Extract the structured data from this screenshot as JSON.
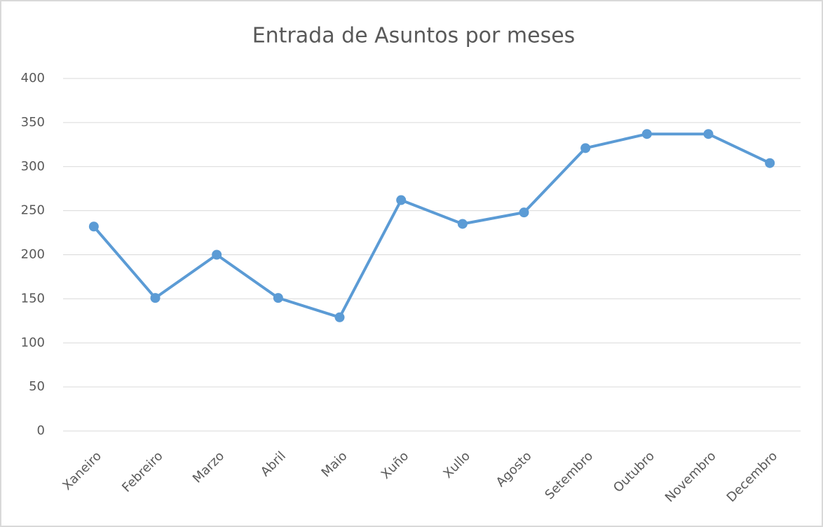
{
  "chart_data": {
    "type": "line",
    "title": "Entrada de Asuntos por meses",
    "categories": [
      "Xaneiro",
      "Febreiro",
      "Marzo",
      "Abril",
      "Maio",
      "Xuño",
      "Xullo",
      "Agosto",
      "Setembro",
      "Outubro",
      "Novembro",
      "Decembro"
    ],
    "series": [
      {
        "name": "Entrada de Asuntos",
        "color": "#5b9bd5",
        "values": [
          232,
          151,
          200,
          151,
          129,
          262,
          235,
          248,
          321,
          337,
          337,
          304
        ]
      }
    ],
    "ylim": [
      0,
      400
    ],
    "yticks": [
      0,
      50,
      100,
      150,
      200,
      250,
      300,
      350,
      400
    ],
    "grid": true
  }
}
